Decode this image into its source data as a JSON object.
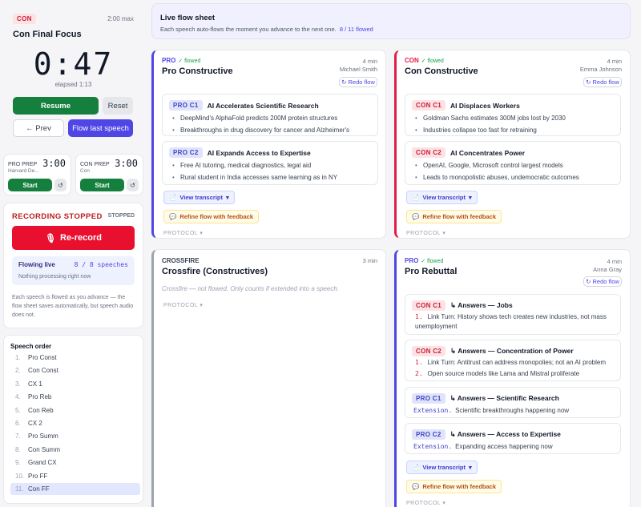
{
  "timer": {
    "side_tag": "CON",
    "max_label": "2:00 max",
    "title": "Con Final Focus",
    "time": "0:47",
    "elapsed": "elapsed 1:13",
    "resume": "Resume",
    "reset": "Reset",
    "prev": "← Prev",
    "flow_last": "Flow last speech"
  },
  "prep": [
    {
      "label": "PRO PREP",
      "time": "3:00",
      "sub": "Harvard De...",
      "start": "Start",
      "reset_icon": "↺"
    },
    {
      "label": "CON PREP",
      "time": "3:00",
      "sub": "Con",
      "start": "Start",
      "reset_icon": "↺"
    }
  ],
  "recording": {
    "title": "RECORDING STOPPED",
    "status": "STOPPED",
    "rerecord": "Re-record",
    "flowing_label": "Flowing live",
    "flowing_count": "8 / 8 speeches",
    "flowing_sub": "Nothing processing right now",
    "note": "Each speech is flowed as you advance — the flow sheet saves automatically, but speech audio does not."
  },
  "speech_order": {
    "title": "Speech order",
    "items": [
      {
        "num": "1.",
        "label": "Pro Const"
      },
      {
        "num": "2.",
        "label": "Con Const"
      },
      {
        "num": "3.",
        "label": "CX 1"
      },
      {
        "num": "4.",
        "label": "Pro Reb"
      },
      {
        "num": "5.",
        "label": "Con Reb"
      },
      {
        "num": "6.",
        "label": "CX 2"
      },
      {
        "num": "7.",
        "label": "Pro Summ"
      },
      {
        "num": "8.",
        "label": "Con Summ"
      },
      {
        "num": "9.",
        "label": "Grand CX"
      },
      {
        "num": "10.",
        "label": "Pro FF"
      },
      {
        "num": "11.",
        "label": "Con FF"
      }
    ],
    "active_index": 10
  },
  "flow_header": {
    "title": "Live flow sheet",
    "subtitle": "Each speech auto-flows the moment you advance to the next one.",
    "count": "8 / 11 flowed"
  },
  "common": {
    "view_transcript": "View transcript",
    "refine": "Refine flow with feedback",
    "protocol": "PROTOCOL",
    "redo": "Redo flow",
    "flowed": "✓ flowed"
  },
  "pro_const": {
    "side": "PRO",
    "title": "Pro Constructive",
    "duration": "4 min",
    "speaker": "Michael Smith",
    "args": [
      {
        "tag": "PRO C1",
        "title": "AI Accelerates Scientific Research",
        "points": [
          "DeepMind's AlphaFold predicts 200M protein structures",
          "Breakthroughs in drug discovery for cancer and Alzheimer's"
        ]
      },
      {
        "tag": "PRO C2",
        "title": "AI Expands Access to Expertise",
        "points": [
          "Free AI tutoring, medical diagnostics, legal aid",
          "Rural student in India accesses same learning as in NY"
        ]
      }
    ]
  },
  "con_const": {
    "side": "CON",
    "title": "Con Constructive",
    "duration": "4 min",
    "speaker": "Emma Johnson",
    "args": [
      {
        "tag": "CON C1",
        "title": "AI Displaces Workers",
        "points": [
          "Goldman Sachs estimates 300M jobs lost by 2030",
          "Industries collapse too fast for retraining"
        ]
      },
      {
        "tag": "CON C2",
        "title": "AI Concentrates Power",
        "points": [
          "OpenAI, Google, Microsoft control largest models",
          "Leads to monopolistic abuses, undemocratic outcomes"
        ]
      }
    ]
  },
  "crossfire": {
    "side": "CROSSFIRE",
    "title": "Crossfire (Constructives)",
    "duration": "3 min",
    "note": "Crossfire — not flowed. Only counts if extended into a speech."
  },
  "pro_reb": {
    "side": "PRO",
    "title": "Pro Rebuttal",
    "duration": "4 min",
    "speaker": "Anna Gray",
    "answers": [
      {
        "tag": "CON C1",
        "title": "↳ Answers — Jobs",
        "lines": [
          {
            "n": "1.",
            "text": "Link Turn: History shows tech creates new industries, not mass unemployment"
          }
        ]
      },
      {
        "tag": "CON C2",
        "title": "↳ Answers — Concentration of Power",
        "lines": [
          {
            "n": "1.",
            "text": "Link Turn: Antitrust can address monopolies; not an AI problem"
          },
          {
            "n": "2.",
            "text": "Open source models like Lama and Mistral proliferate"
          }
        ]
      },
      {
        "tag": "PRO C1",
        "title": "↳ Answers — Scientific Research",
        "ext": "Extension.",
        "text": "Scientific breakthroughs happening now"
      },
      {
        "tag": "PRO C2",
        "title": "↳ Answers — Access to Expertise",
        "ext": "Extension.",
        "text": "Expanding access happening now"
      }
    ]
  },
  "colors": {
    "pro": "#4f46e5",
    "con": "#e11d48",
    "green": "#15803d",
    "red": "#e8102e"
  }
}
